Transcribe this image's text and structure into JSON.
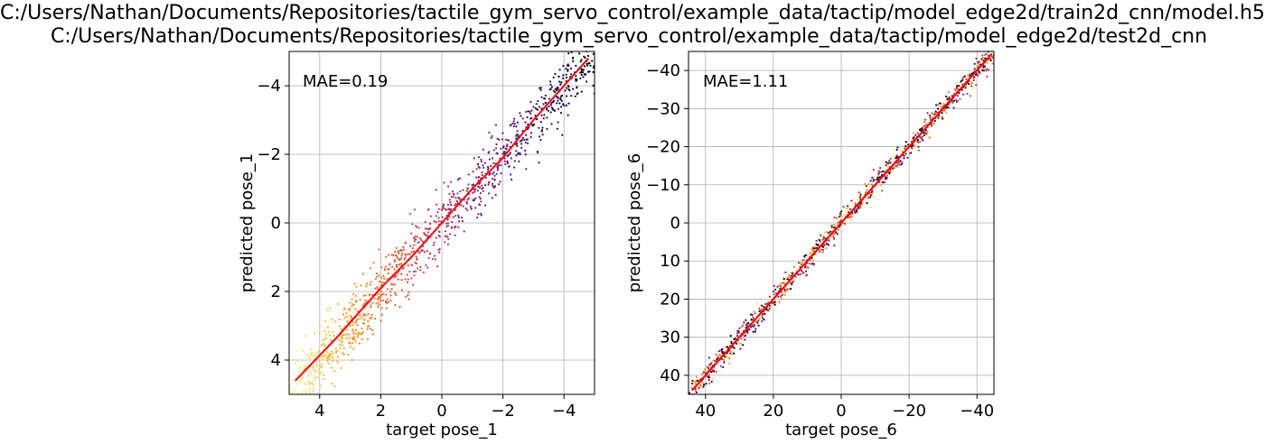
{
  "title_lines": [
    "C:/Users/Nathan/Documents/Repositories/tactile_gym_servo_control/example_data/tactip/model_edge2d/train2d_cnn/model.h5",
    "C:/Users/Nathan/Documents/Repositories/tactile_gym_servo_control/example_data/tactip/model_edge2d/test2d_cnn"
  ],
  "colors": {
    "fit_line": "#ff0000",
    "grid": "#b0b0b0",
    "colormap": "inferno (reversed)"
  },
  "chart_data": [
    {
      "type": "scatter",
      "xlabel": "target pose_1",
      "ylabel": "predicted pose_1",
      "annotation": "MAE=0.19",
      "xlim": [
        5,
        -5
      ],
      "ylim": [
        5,
        -5
      ],
      "xticks": [
        4,
        2,
        0,
        -2,
        -4
      ],
      "yticks": [
        -4,
        -2,
        0,
        2,
        4
      ],
      "xtick_labels": [
        "4",
        "2",
        "0",
        "−2",
        "−4"
      ],
      "ytick_labels": [
        "−4",
        "−2",
        "0",
        "2",
        "4"
      ],
      "grid": true,
      "scatter_spread": 0.45,
      "trend_line": {
        "x": [
          4.8,
          3.5,
          2,
          1,
          0,
          -1,
          -2,
          -3,
          -4,
          -4.8
        ],
        "y": [
          4.6,
          3.4,
          1.9,
          1.0,
          0.0,
          -1.0,
          -1.9,
          -3.0,
          -4.0,
          -4.8
        ]
      }
    },
    {
      "type": "scatter",
      "xlabel": "target pose_6",
      "ylabel": "predicted pose_6",
      "annotation": "MAE=1.11",
      "xlim": [
        45,
        -45
      ],
      "ylim": [
        45,
        -45
      ],
      "xticks": [
        40,
        20,
        0,
        -20,
        -40
      ],
      "yticks": [
        -40,
        -30,
        -20,
        -10,
        0,
        10,
        20,
        30,
        40
      ],
      "xtick_labels": [
        "40",
        "20",
        "0",
        "−20",
        "−40"
      ],
      "ytick_labels": [
        "−40",
        "−30",
        "−20",
        "−10",
        "0",
        "10",
        "20",
        "30",
        "40"
      ],
      "grid": true,
      "scatter_spread": 1.4,
      "trend_line": {
        "x": [
          44,
          30,
          20,
          10,
          0,
          -10,
          -20,
          -30,
          -44
        ],
        "y": [
          44,
          30,
          20,
          10,
          0,
          -10,
          -20,
          -30,
          -44
        ]
      }
    }
  ]
}
